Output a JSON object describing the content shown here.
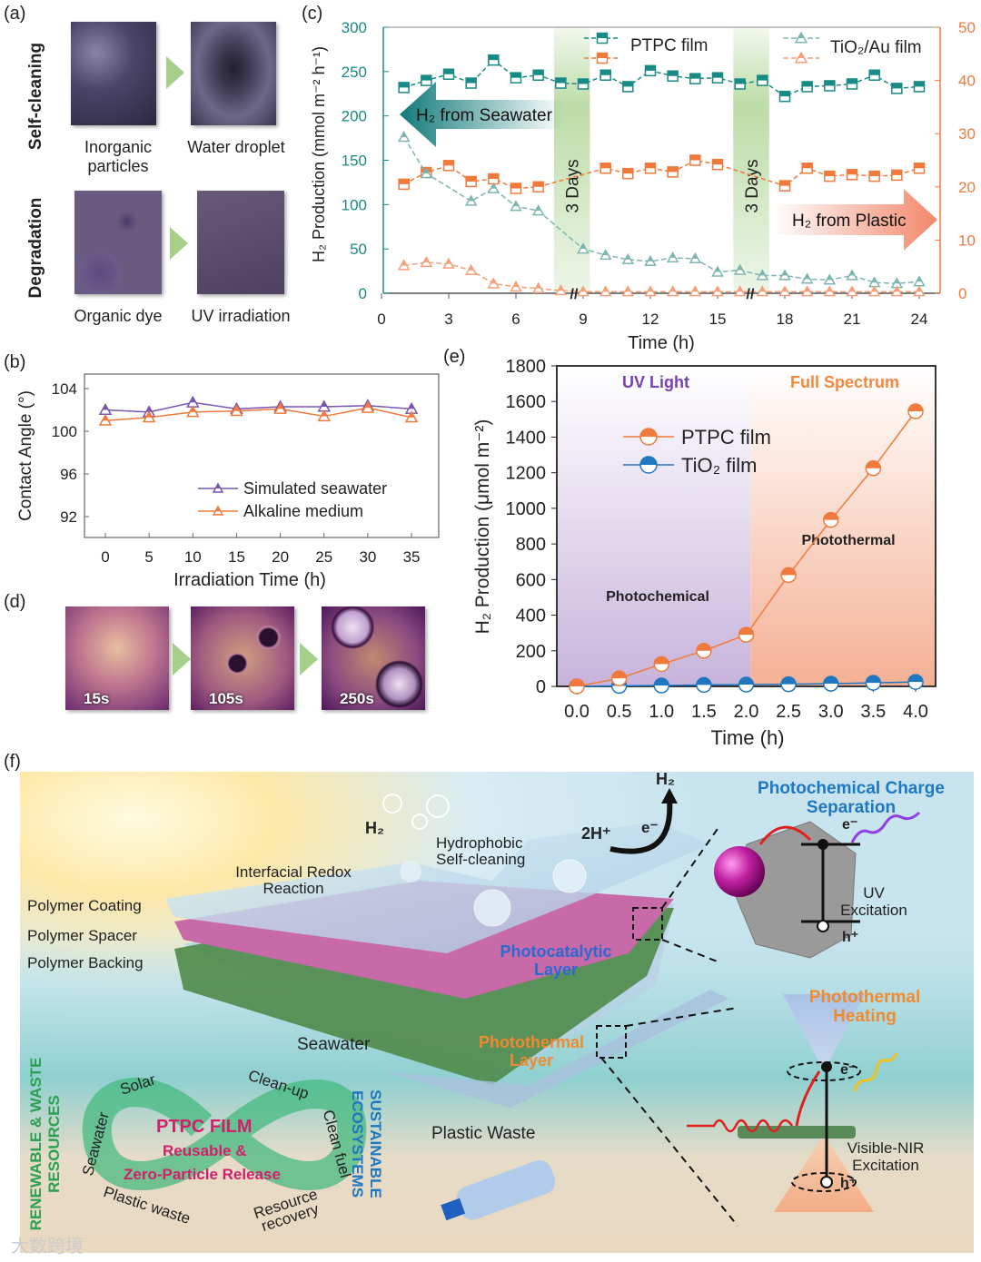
{
  "panel_labels": {
    "a": "(a)",
    "b": "(b)",
    "c": "(c)",
    "d": "(d)",
    "e": "(e)",
    "f": "(f)"
  },
  "panel_a": {
    "row_labels": [
      "Self-cleaning",
      "Degradation"
    ],
    "captions": [
      "Inorganic particles",
      "Water droplet",
      "Organic dye",
      "UV irradiation"
    ]
  },
  "panel_d": {
    "captions": [
      "15s",
      "105s",
      "250s"
    ]
  },
  "panel_f": {
    "h2_bubble": "H₂",
    "h2_top": "H₂",
    "two_h_plus": "2H⁺",
    "e_minus": "e⁻",
    "hydrophobic": "Hydrophobic Self-cleaning",
    "interfacial": "Interfacial Redox Reaction",
    "polymer_coating": "Polymer Coating",
    "polymer_spacer": "Polymer Spacer",
    "polymer_backing": "Polymer Backing",
    "photocatalytic_layer": "Photocatalytic Layer",
    "photothermal_layer": "Photothermal Layer",
    "seawater": "Seawater",
    "plastic_waste": "Plastic Waste",
    "photochemical_title": "Photochemical Charge Separation",
    "uv_excitation": "UV Excitation",
    "photothermal_title": "Photothermal Heating",
    "visnir_excitation": "Visible-NIR Excitation",
    "electron": "e⁻",
    "hole": "h⁺",
    "renewable": "RENEWABLE & WASTE RESOURCES",
    "sustainable": "SUSTAINABLE ECOSYSTEMS",
    "cycle_words": [
      "Solar",
      "Seawater",
      "Plastic waste",
      "Clean-up",
      "Clean fuel",
      "Resource recovery"
    ],
    "ptpc_film": "PTPC FILM",
    "reusable": "Reusable &",
    "zero_particle": "Zero-Particle Release"
  },
  "watermark": "大数跨境",
  "colors": {
    "teal": "#1a8a85",
    "orange": "#f07a3c",
    "purple": "#7a55b0",
    "blue": "#1f77c0",
    "green_band": "#a6d08a"
  },
  "chart_data": [
    {
      "id": "c",
      "type": "line",
      "xlabel": "Time (h)",
      "ylabel": "H₂ Production (mmol m⁻² h⁻¹)",
      "xlim": [
        0,
        25
      ],
      "ylim": [
        0,
        300
      ],
      "y2lim": [
        0,
        50
      ],
      "xticks": [
        0,
        3,
        6,
        9,
        12,
        15,
        18,
        21,
        24
      ],
      "yticks": [
        0,
        50,
        100,
        150,
        200,
        250,
        300
      ],
      "y2ticks": [
        0,
        10,
        20,
        30,
        40,
        50
      ],
      "x": [
        1,
        2,
        3,
        4,
        5,
        6,
        7,
        8,
        9,
        10,
        11,
        12,
        13,
        14,
        15,
        16,
        17,
        18,
        19,
        20,
        21,
        22,
        23,
        24
      ],
      "series": [
        {
          "name": "PTPC film (seawater)",
          "axis": "left",
          "marker": "square",
          "color": "#1a8a85",
          "values": [
            232,
            240,
            247,
            237,
            263,
            243,
            246,
            237,
            236,
            246,
            233,
            251,
            245,
            242,
            243,
            236,
            240,
            222,
            233,
            234,
            236,
            246,
            231,
            233
          ]
        },
        {
          "name": "PTPC film (plastic)",
          "axis": "right",
          "marker": "square",
          "color": "#f07a3c",
          "values": [
            20.5,
            22.7,
            24,
            21,
            21.5,
            19.7,
            20,
            null,
            null,
            23.5,
            22.5,
            23.5,
            22.8,
            25,
            24.2,
            null,
            null,
            20.2,
            23.5,
            22,
            22.3,
            22,
            22.2,
            23.5
          ]
        },
        {
          "name": "TiO₂/Au film (seawater)",
          "axis": "left",
          "marker": "triangle",
          "color": "#7fb5b0",
          "values": [
            176,
            135,
            null,
            104,
            118,
            98,
            93,
            null,
            50,
            43,
            38,
            36,
            40,
            39,
            24,
            26,
            20,
            20,
            16,
            15,
            20,
            12,
            11,
            13
          ]
        },
        {
          "name": "TiO₂/Au film (plastic)",
          "axis": "right",
          "marker": "triangle",
          "color": "#f4a07a",
          "values": [
            5.2,
            5.8,
            5.5,
            4.3,
            1.8,
            1.2,
            0.9,
            0.5,
            0.3,
            0.3,
            0.3,
            0.3,
            0.3,
            0.3,
            0.3,
            0.3,
            0.3,
            0.3,
            0.3,
            0.3,
            0.3,
            0.3,
            0.3,
            0.3
          ]
        }
      ],
      "legend": [
        "PTPC film",
        "TiO₂/Au film"
      ],
      "gaps": [
        {
          "label": "3 Days",
          "from": 7.7,
          "to": 9.3
        },
        {
          "label": "3 Days",
          "from": 15.7,
          "to": 17.3
        }
      ],
      "annotations": [
        "H₂ from Seawater",
        "H₂ from Plastic"
      ]
    },
    {
      "id": "b",
      "type": "line",
      "xlabel": "Irradiation Time (h)",
      "ylabel": "Contact Angle (°)",
      "xlim": [
        -2.4,
        38
      ],
      "ylim": [
        90,
        105.4
      ],
      "xticks": [
        0,
        5,
        10,
        15,
        20,
        25,
        30,
        35
      ],
      "yticks": [
        92,
        96,
        100,
        104
      ],
      "x": [
        0,
        5,
        10,
        15,
        20,
        25,
        30,
        35
      ],
      "series": [
        {
          "name": "Simulated seawater",
          "color": "#7a55b0",
          "values": [
            102,
            101.8,
            102.7,
            102.1,
            102.3,
            102.3,
            102.4,
            102.1
          ]
        },
        {
          "name": "Alkaline medium",
          "color": "#f07a3c",
          "values": [
            101,
            101.3,
            101.8,
            101.9,
            102.1,
            101.4,
            102.2,
            101.3
          ]
        }
      ],
      "legend_position": "bottom-right"
    },
    {
      "id": "e",
      "type": "line",
      "xlabel": "Time (h)",
      "ylabel": "H₂ Production (μmol m⁻²)",
      "xlim": [
        -0.24,
        4.23
      ],
      "ylim": [
        0,
        1800
      ],
      "xticks": [
        0.0,
        0.5,
        1.0,
        1.5,
        2.0,
        2.5,
        3.0,
        3.5,
        4.0
      ],
      "xtick_labels": [
        "0.0",
        "0.5",
        "1.0",
        "1.5",
        "2.0",
        "2.5",
        "3.0",
        "3.5",
        "4.0"
      ],
      "yticks": [
        0,
        200,
        400,
        600,
        800,
        1000,
        1200,
        1400,
        1600,
        1800
      ],
      "x": [
        0,
        0.5,
        1,
        1.5,
        2,
        2.5,
        3,
        3.5,
        4
      ],
      "series": [
        {
          "name": "PTPC film",
          "color": "#f07a3c",
          "values": [
            0,
            45,
            125,
            200,
            290,
            625,
            935,
            1225,
            1545
          ]
        },
        {
          "name": "TiO₂ film",
          "color": "#1f77c0",
          "values": [
            0,
            3,
            5,
            8,
            10,
            12,
            15,
            20,
            25
          ]
        }
      ],
      "regions": [
        {
          "label": "UV Light",
          "from": -0.24,
          "to": 2.05,
          "color": "#7a3fb0",
          "mechanism": "Photochemical"
        },
        {
          "label": "Full Spectrum",
          "from": 2.05,
          "to": 4.23,
          "color": "#f08a3c",
          "mechanism": "Photothermal"
        }
      ],
      "legend_position": "upper-left"
    }
  ]
}
